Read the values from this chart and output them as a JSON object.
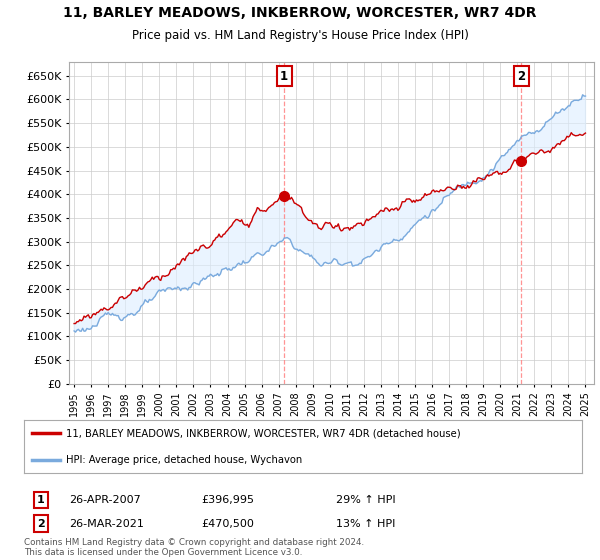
{
  "title": "11, BARLEY MEADOWS, INKBERROW, WORCESTER, WR7 4DR",
  "subtitle": "Price paid vs. HM Land Registry's House Price Index (HPI)",
  "legend_line1": "11, BARLEY MEADOWS, INKBERROW, WORCESTER, WR7 4DR (detached house)",
  "legend_line2": "HPI: Average price, detached house, Wychavon",
  "annotation1_label": "1",
  "annotation1_date": "26-APR-2007",
  "annotation1_price": "£396,995",
  "annotation1_hpi": "29% ↑ HPI",
  "annotation2_label": "2",
  "annotation2_date": "26-MAR-2021",
  "annotation2_price": "£470,500",
  "annotation2_hpi": "13% ↑ HPI",
  "footer": "Contains HM Land Registry data © Crown copyright and database right 2024.\nThis data is licensed under the Open Government Licence v3.0.",
  "hpi_color": "#7aaadd",
  "price_color": "#cc0000",
  "fill_color": "#ddeeff",
  "dashed_line_color": "#ff8888",
  "background_color": "#ffffff",
  "grid_color": "#cccccc",
  "ylim": [
    0,
    680000
  ],
  "yticks": [
    0,
    50000,
    100000,
    150000,
    200000,
    250000,
    300000,
    350000,
    400000,
    450000,
    500000,
    550000,
    600000,
    650000
  ],
  "sale1_x": 2007.32,
  "sale1_y": 396995,
  "sale2_x": 2021.24,
  "sale2_y": 470500,
  "xmin": 1994.7,
  "xmax": 2025.5
}
